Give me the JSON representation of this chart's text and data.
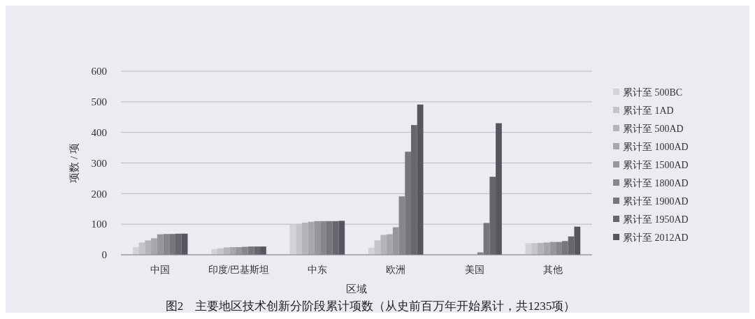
{
  "chart_data": {
    "type": "bar",
    "title": "图2　主要地区技术创新分阶段累计项数（从史前百万年开始累计，共1235项）",
    "xlabel": "区域",
    "ylabel": "项数 / 项",
    "categories": [
      "中国",
      "印度/巴基斯坦",
      "中东",
      "欧洲",
      "美国",
      "其他"
    ],
    "ylim": [
      0,
      600
    ],
    "yticks": [
      0,
      100,
      200,
      300,
      400,
      500,
      600
    ],
    "grid": "y",
    "legend": "right",
    "series": [
      {
        "name": "累计至 500BC",
        "color": "#d2d2d8",
        "values": [
          25,
          19,
          99,
          23,
          0,
          38
        ]
      },
      {
        "name": "累计至 1AD",
        "color": "#c4c4ca",
        "values": [
          40,
          21,
          101,
          47,
          0,
          38
        ]
      },
      {
        "name": "累计至 500AD",
        "color": "#b4b4ba",
        "values": [
          47,
          24,
          105,
          65,
          0,
          39
        ]
      },
      {
        "name": "累计至 1000AD",
        "color": "#a6a6ac",
        "values": [
          54,
          25,
          108,
          67,
          0,
          40
        ]
      },
      {
        "name": "累计至 1500AD",
        "color": "#96969c",
        "values": [
          67,
          25,
          110,
          90,
          0,
          42
        ]
      },
      {
        "name": "累计至 1800AD",
        "color": "#86868c",
        "values": [
          68,
          26,
          110,
          191,
          8,
          42
        ]
      },
      {
        "name": "累计至 1900AD",
        "color": "#76767c",
        "values": [
          68,
          27,
          110,
          337,
          104,
          45
        ]
      },
      {
        "name": "累计至 1950AD",
        "color": "#66666d",
        "values": [
          69,
          27,
          110,
          424,
          255,
          60
        ]
      },
      {
        "name": "累计至 2012AD",
        "color": "#56565e",
        "values": [
          69,
          27,
          111,
          491,
          430,
          92
        ]
      }
    ]
  }
}
